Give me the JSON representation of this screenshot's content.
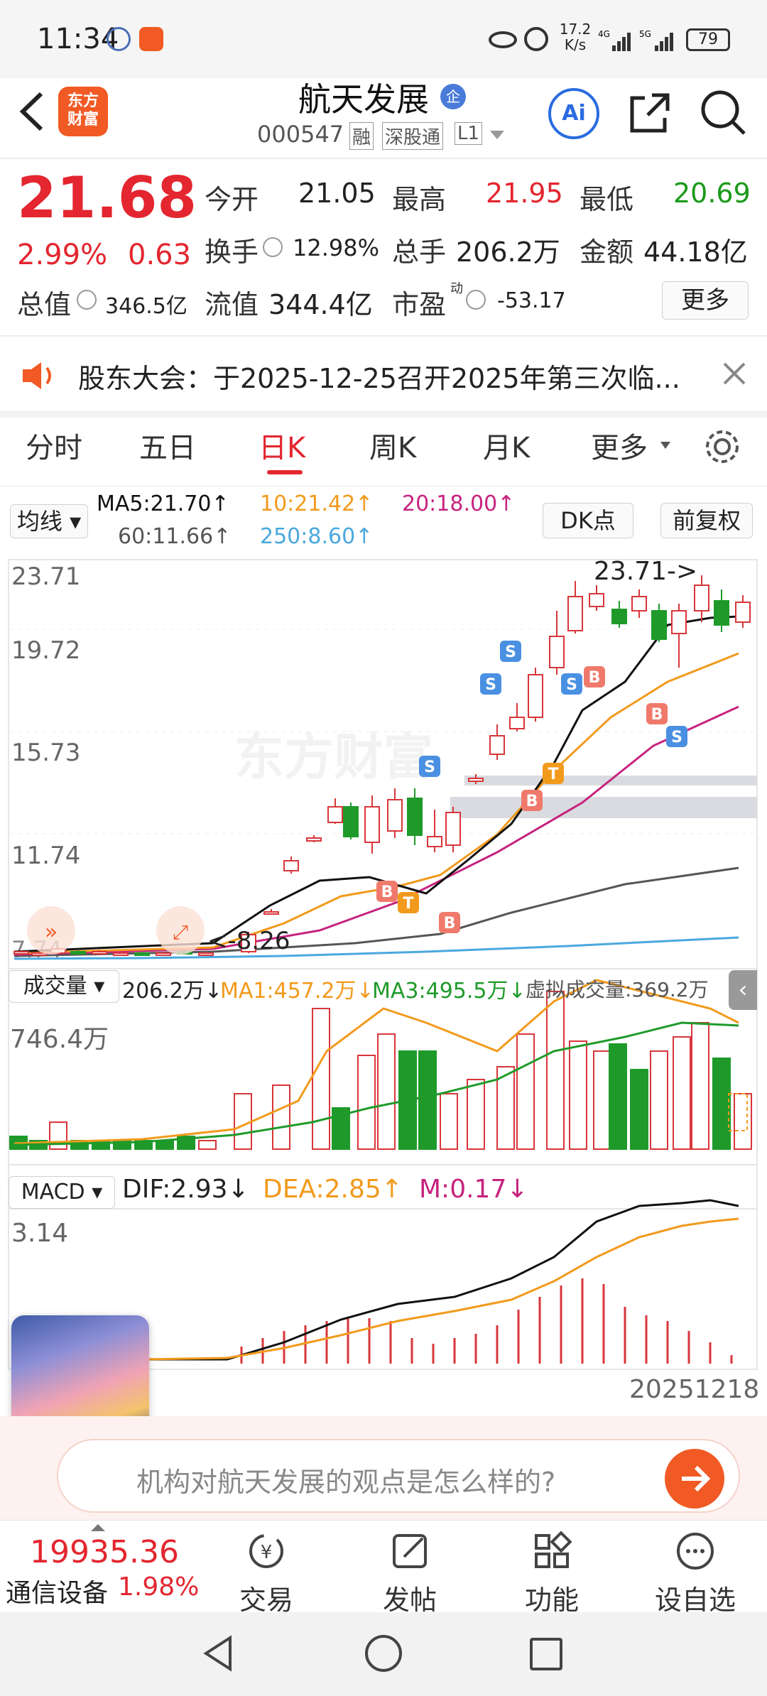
{
  "status_bar": {
    "time": "11:34",
    "net_speed": "17.2\nK/s",
    "battery": "79"
  },
  "header": {
    "logo_text": "东方\n财富",
    "title": "航天发展",
    "badge": "企",
    "code": "000547",
    "tag_margin": "融",
    "tag_connect": "深股通",
    "tag_level": "L1"
  },
  "quote": {
    "price": "21.68",
    "change_pct": "2.99%",
    "change": "0.63",
    "open_label": "今开",
    "open": "21.05",
    "high_label": "最高",
    "high": "21.95",
    "low_label": "最低",
    "low": "20.69",
    "turnover_label": "换手",
    "turnover": "12.98%",
    "volume_label": "总手",
    "volume": "206.2万",
    "amount_label": "金额",
    "amount": "44.18亿",
    "mktcap_label": "总值",
    "mktcap": "346.5亿",
    "float_label": "流值",
    "float_cap": "344.4亿",
    "pe_label": "市盈",
    "pe_sup": "动",
    "pe": "-53.17",
    "more_label": "更多"
  },
  "notice": {
    "text": "股东大会：于2025-12-25召开2025年第三次临..."
  },
  "tabs": [
    "分时",
    "五日",
    "日K",
    "周K",
    "月K",
    "更多"
  ],
  "active_tab": 2,
  "kline": {
    "ma_button": "均线",
    "ma5": "MA5:21.70↑",
    "ma10": "10:21.42↑",
    "ma20": "20:18.00↑",
    "ma60": "60:11.66↑",
    "ma250": "250:8.60↑",
    "dk_button": "DK点",
    "adjust_button": "前复权",
    "y_labels": [
      "23.71",
      "19.72",
      "15.73",
      "11.74",
      "7.74"
    ],
    "high_mark": "23.71->",
    "low_mark": "<-8.26",
    "watermark": "东方财富",
    "colors": {
      "up": "#d8363a",
      "down": "#1f9a2a",
      "ma5": "#111111",
      "ma10": "#f29a1c",
      "ma20": "#c6237f",
      "ma60": "#555555",
      "ma250": "#4aa8de"
    }
  },
  "volume": {
    "button": "成交量",
    "vol": "206.2万↓",
    "ma1": "MA1:457.2万↓",
    "ma3": "MA3:495.5万↓",
    "virtual": "虚拟成交量:369.2万",
    "y_max": "746.4万"
  },
  "macd": {
    "button": "MACD",
    "dif": "DIF:2.93↓",
    "dea": "DEA:2.85↑",
    "m": "M:0.17↓",
    "y_max": "3.14",
    "date": "20251218"
  },
  "ai_bar": {
    "text": "机构对航天发展的观点是怎么样的?"
  },
  "bottom_nav": {
    "index_value": "19935.36",
    "index_name": "通信设备",
    "index_pct": "1.98%",
    "trade": "交易",
    "post": "发帖",
    "func": "功能",
    "watch": "设自选"
  }
}
